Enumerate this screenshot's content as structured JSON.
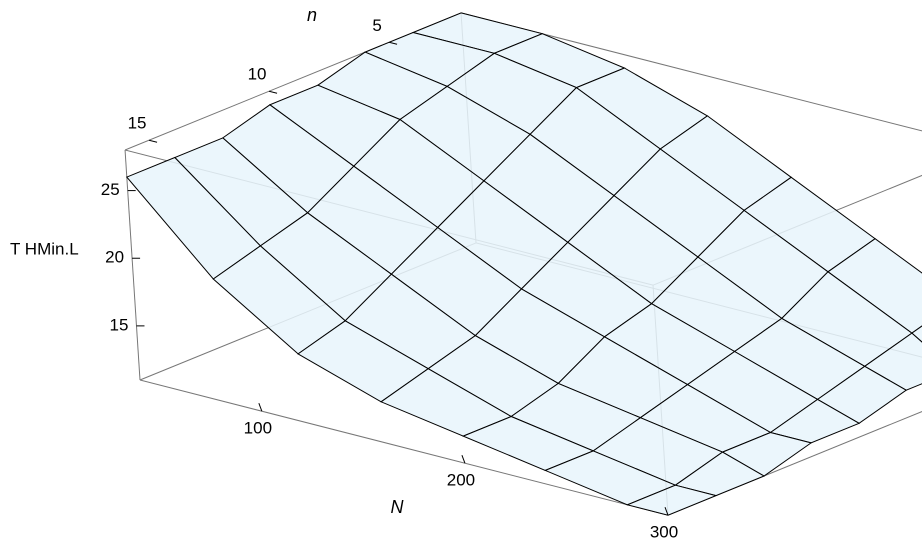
{
  "chart_data": {
    "type": "surface",
    "x_label": "N",
    "y_label": "n",
    "z_label": "T HMin.L",
    "x": [
      40,
      80,
      120,
      160,
      200,
      240,
      280,
      300
    ],
    "y": [
      2,
      4,
      6,
      8,
      10,
      12,
      14,
      16
    ],
    "z": [
      [
        28,
        28,
        27,
        25,
        22,
        19,
        16,
        14
      ],
      [
        28,
        28,
        27,
        24,
        21,
        18,
        15,
        13
      ],
      [
        28,
        27,
        25,
        22,
        19,
        16,
        14,
        13
      ],
      [
        27,
        26,
        23,
        20,
        17,
        15,
        13,
        12
      ],
      [
        27,
        24,
        21,
        18,
        16,
        14,
        12,
        12
      ],
      [
        26,
        22,
        19,
        16,
        14,
        13,
        12,
        11
      ],
      [
        26,
        21,
        17,
        15,
        13,
        12,
        11,
        11
      ],
      [
        26,
        20,
        16,
        14,
        13,
        12,
        11,
        11
      ]
    ],
    "xlim": [
      40,
      300
    ],
    "ylim": [
      2,
      16
    ],
    "zlim": [
      11,
      28
    ],
    "xticks": [
      100,
      200,
      300
    ],
    "yticks": [
      5,
      10,
      15
    ],
    "zticks": [
      15,
      20,
      25
    ],
    "color": "#e8f4fc"
  }
}
